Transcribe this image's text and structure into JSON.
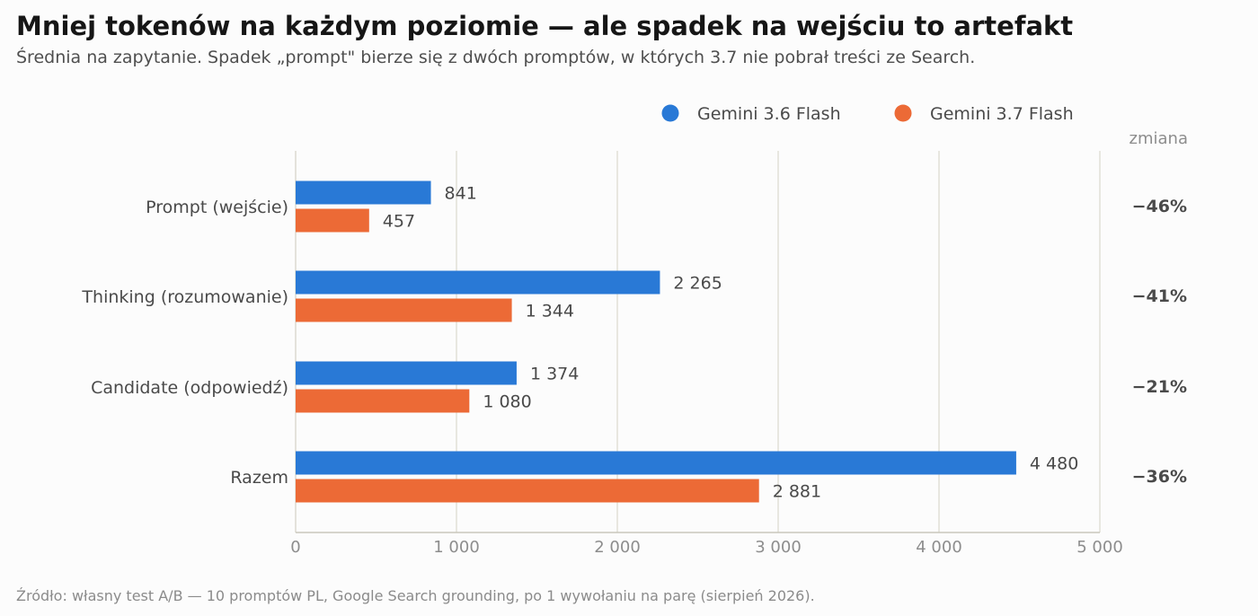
{
  "title": "Mniej tokenów na każdym poziomie — ale spadek na wejściu to artefakt",
  "subtitle": "Średnia na zapytanie. Spadek „prompt\" bierze się z dwóch promptów, w których 3.7 nie pobrał treści ze Search.",
  "footer": "Źródło: własny test A/B — 10 promptów PL, Google Search grounding, po 1 wywołaniu na parę (sierpień 2026).",
  "chart_data": {
    "type": "bar",
    "orientation": "horizontal",
    "categories": [
      "Prompt (wejście)",
      "Thinking (rozumowanie)",
      "Candidate (odpowiedź)",
      "Razem"
    ],
    "series": [
      {
        "name": "Gemini 3.6 Flash",
        "values": [
          841,
          2265,
          1374,
          4480
        ],
        "labels": [
          "841",
          "2 265",
          "1 374",
          "4 480"
        ],
        "color": "#2979d6"
      },
      {
        "name": "Gemini 3.7 Flash",
        "values": [
          457,
          1344,
          1080,
          2881
        ],
        "labels": [
          "457",
          "1 344",
          "1 080",
          "2 881"
        ],
        "color": "#ec6a36"
      }
    ],
    "change_header": "zmiana",
    "changes": [
      "−46%",
      "−41%",
      "−21%",
      "−36%"
    ],
    "xlim": [
      0,
      5000
    ],
    "xticks": [
      0,
      1000,
      2000,
      3000,
      4000,
      5000
    ],
    "xtick_labels": [
      "0",
      "1 000",
      "2 000",
      "3 000",
      "4 000",
      "5 000"
    ],
    "grid": "vertical",
    "legend_position": "top-right"
  }
}
